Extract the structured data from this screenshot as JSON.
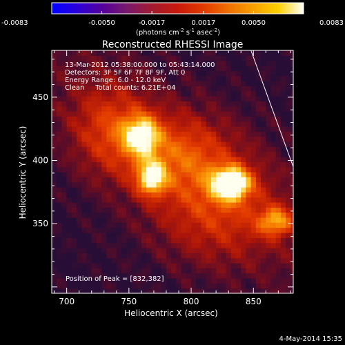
{
  "colorbar": {
    "ticks": [
      "-0.0083",
      "-0.0050",
      "-0.0017",
      "0.0017",
      "0.0050",
      "0.0083"
    ],
    "tick_values": [
      -0.0083,
      -0.005,
      -0.0017,
      0.0017,
      0.005,
      0.0083
    ],
    "range": [
      -0.0083,
      0.0083
    ],
    "units_prefix": "(photons cm",
    "units_exp1": "-2",
    "units_mid": " s",
    "units_exp2": "-1",
    "units_mid2": " asec",
    "units_exp3": "-2",
    "units_suffix": ")",
    "colormap": [
      "#0000ff",
      "#2a00d8",
      "#55009b",
      "#7a1a6a",
      "#a21b2e",
      "#c8190c",
      "#e23a00",
      "#f06e00",
      "#f8a000",
      "#fcd000",
      "#ffffff"
    ]
  },
  "chart_data": {
    "type": "heatmap",
    "title": "Reconstructed RHESSI Image",
    "xlabel": "Heliocentric X (arcsec)",
    "ylabel": "Heliocentric Y (arcsec)",
    "xlim": [
      688,
      882
    ],
    "ylim": [
      295,
      487
    ],
    "x_ticks": [
      700,
      750,
      800,
      850
    ],
    "y_ticks": [
      350,
      400,
      450
    ],
    "x_tick_labels": [
      "700",
      "750",
      "800",
      "850"
    ],
    "y_tick_labels": [
      "350",
      "400",
      "450"
    ],
    "annotation_lines": [
      "13-Mar-2012 05:38:00.000 to 05:43:14.000",
      "Detectors: 3F 5F 6F 7F 8F 9F, Att 0",
      "Energy Range: 6.0 - 12.0 keV",
      "Clean     Total counts: 6.21E+04"
    ],
    "peak_label": "Position of Peak = [832,382]",
    "peak": [
      832,
      382
    ],
    "sources": [
      {
        "x": 832,
        "y": 382,
        "amp": 1.0,
        "sx": 11,
        "sy": 9
      },
      {
        "x": 768,
        "y": 386,
        "amp": 0.78,
        "sx": 8,
        "sy": 9
      },
      {
        "x": 760,
        "y": 420,
        "amp": 0.72,
        "sx": 10,
        "sy": 11
      },
      {
        "x": 868,
        "y": 352,
        "amp": 0.62,
        "sx": 10,
        "sy": 8
      },
      {
        "x": 790,
        "y": 405,
        "amp": 0.45,
        "sx": 30,
        "sy": 22
      },
      {
        "x": 735,
        "y": 425,
        "amp": 0.4,
        "sx": 22,
        "sy": 25
      },
      {
        "x": 820,
        "y": 360,
        "amp": 0.38,
        "sx": 35,
        "sy": 28
      }
    ],
    "limb_line": [
      [
        848,
        487
      ],
      [
        882,
        395
      ]
    ],
    "timestamp": "4-May-2014 15:35"
  }
}
